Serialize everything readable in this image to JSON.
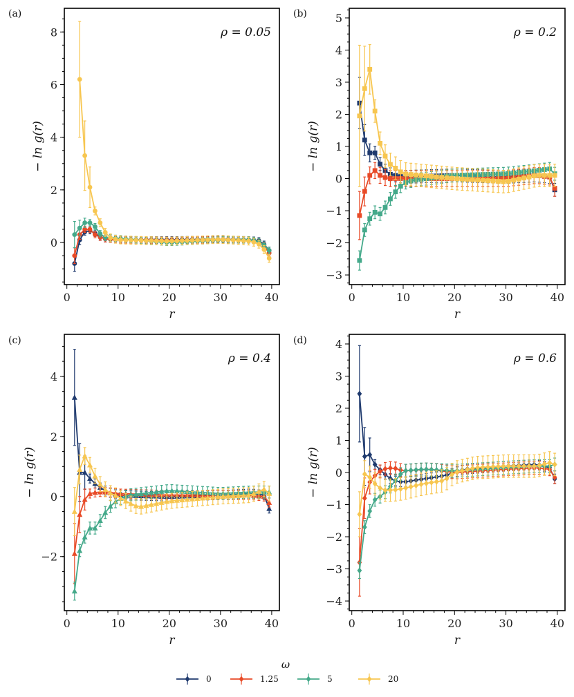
{
  "colors": {
    "s0": "#1f3a6e",
    "s1": "#e84a27",
    "s2": "#44a98a",
    "s3": "#f7c650"
  },
  "legend": {
    "title": "ω",
    "items": [
      {
        "label": "0",
        "color": "#1f3a6e",
        "marker": "diamond"
      },
      {
        "label": "1.25",
        "color": "#e84a27",
        "marker": "diamond"
      },
      {
        "label": "5",
        "color": "#44a98a",
        "marker": "diamond"
      },
      {
        "label": "20",
        "color": "#f7c650",
        "marker": "diamond"
      }
    ]
  },
  "chart_data": [
    {
      "type": "line",
      "panel_label": "(a)",
      "rho_label": "ρ = 0.05",
      "marker": "circle",
      "xlabel": "r",
      "ylabel": "− ln g(r)",
      "xlim": [
        -0.5,
        41.5
      ],
      "ylim": [
        -1.6,
        8.9
      ],
      "xticks": [
        "0",
        "10",
        "20",
        "30",
        "40"
      ],
      "yticks": [
        "0",
        "2",
        "4",
        "6",
        "8"
      ],
      "series": [
        {
          "name": "0",
          "anchors": [
            [
              1.5,
              -0.8
            ],
            [
              2.5,
              0.1
            ],
            [
              3.5,
              0.4
            ],
            [
              4.5,
              0.45
            ],
            [
              5.5,
              0.35
            ],
            [
              7,
              0.15
            ],
            [
              10,
              0.1
            ],
            [
              20,
              0.1
            ],
            [
              30,
              0.12
            ],
            [
              36,
              0.1
            ],
            [
              38,
              0.05
            ],
            [
              39.5,
              -0.3
            ]
          ],
          "err": 0.12,
          "err_first": 0.3
        },
        {
          "name": "1.25",
          "anchors": [
            [
              1.5,
              -0.5
            ],
            [
              2.5,
              0.3
            ],
            [
              3.5,
              0.5
            ],
            [
              4.5,
              0.5
            ],
            [
              5.5,
              0.3
            ],
            [
              7,
              0.15
            ],
            [
              10,
              0.1
            ],
            [
              20,
              0.08
            ],
            [
              30,
              0.1
            ],
            [
              36,
              0.1
            ],
            [
              38,
              0.0
            ],
            [
              39.5,
              -0.4
            ]
          ],
          "err": 0.12,
          "err_first": 0.3
        },
        {
          "name": "5",
          "anchors": [
            [
              1.5,
              0.3
            ],
            [
              2.5,
              0.55
            ],
            [
              3.5,
              0.75
            ],
            [
              4.5,
              0.75
            ],
            [
              5.5,
              0.6
            ],
            [
              7,
              0.2
            ],
            [
              10,
              0.15
            ],
            [
              20,
              0.0
            ],
            [
              30,
              0.1
            ],
            [
              36,
              0.1
            ],
            [
              38,
              0.0
            ],
            [
              39.5,
              -0.3
            ]
          ],
          "err": 0.12,
          "err_first": 0.5
        },
        {
          "name": "20",
          "anchors": [
            [
              2.5,
              6.2
            ],
            [
              3.5,
              3.3
            ],
            [
              4.5,
              2.1
            ],
            [
              5.5,
              1.2
            ],
            [
              6.5,
              0.75
            ],
            [
              8,
              0.2
            ],
            [
              10,
              0.1
            ],
            [
              20,
              0.05
            ],
            [
              30,
              0.12
            ],
            [
              36,
              0.05
            ],
            [
              38,
              -0.1
            ],
            [
              39.5,
              -0.6
            ]
          ],
          "err": 0.15,
          "err_first": 2.2
        }
      ]
    },
    {
      "type": "line",
      "panel_label": "(b)",
      "rho_label": "ρ = 0.2",
      "marker": "square",
      "xlabel": "r",
      "ylabel": "− ln g(r)",
      "xlim": [
        -0.5,
        41.5
      ],
      "ylim": [
        -3.3,
        5.3
      ],
      "xticks": [
        "0",
        "10",
        "20",
        "30",
        "40"
      ],
      "yticks": [
        "−3",
        "−2",
        "−1",
        "0",
        "1",
        "2",
        "3",
        "4",
        "5"
      ],
      "series": [
        {
          "name": "0",
          "anchors": [
            [
              1.5,
              2.35
            ],
            [
              2.5,
              1.2
            ],
            [
              3.5,
              0.8
            ],
            [
              4.5,
              0.8
            ],
            [
              5.5,
              0.45
            ],
            [
              7,
              0.15
            ],
            [
              10,
              0.05
            ],
            [
              20,
              0.1
            ],
            [
              30,
              0.05
            ],
            [
              36,
              0.1
            ],
            [
              38.5,
              0.05
            ],
            [
              39.5,
              -0.35
            ]
          ],
          "err": 0.2,
          "err_first": 0.8
        },
        {
          "name": "1.25",
          "anchors": [
            [
              1.5,
              -1.15
            ],
            [
              2.5,
              -0.4
            ],
            [
              3.5,
              0.1
            ],
            [
              4.5,
              0.25
            ],
            [
              5.5,
              0.1
            ],
            [
              7,
              0.0
            ],
            [
              10,
              0.0
            ],
            [
              20,
              0.0
            ],
            [
              30,
              0.0
            ],
            [
              36,
              0.1
            ],
            [
              38.5,
              0.05
            ],
            [
              39.5,
              -0.3
            ]
          ],
          "err": 0.25,
          "err_first": 0.75
        },
        {
          "name": "5",
          "anchors": [
            [
              1.5,
              -2.55
            ],
            [
              2.5,
              -1.6
            ],
            [
              3.5,
              -1.25
            ],
            [
              4.5,
              -1.05
            ],
            [
              5.5,
              -1.1
            ],
            [
              6.5,
              -0.9
            ],
            [
              8,
              -0.5
            ],
            [
              10,
              -0.15
            ],
            [
              12,
              -0.05
            ],
            [
              20,
              0.1
            ],
            [
              30,
              0.15
            ],
            [
              36,
              0.25
            ],
            [
              38.5,
              0.3
            ],
            [
              39.5,
              0.15
            ]
          ],
          "err": 0.2,
          "err_first": 0.3
        },
        {
          "name": "20",
          "anchors": [
            [
              1.5,
              1.95
            ],
            [
              2.5,
              2.8
            ],
            [
              3.5,
              3.4
            ],
            [
              4.5,
              2.1
            ],
            [
              5.5,
              1.1
            ],
            [
              7,
              0.5
            ],
            [
              10,
              0.15
            ],
            [
              20,
              0.0
            ],
            [
              30,
              -0.1
            ],
            [
              36,
              0.1
            ],
            [
              38.5,
              0.1
            ],
            [
              39.5,
              0.1
            ]
          ],
          "err": 0.35,
          "err_first": 2.2
        }
      ]
    },
    {
      "type": "line",
      "panel_label": "(c)",
      "rho_label": "ρ = 0.4",
      "marker": "triangle",
      "xlabel": "r",
      "ylabel": "− ln g(r)",
      "xlim": [
        -0.5,
        41.5
      ],
      "ylim": [
        -3.8,
        5.4
      ],
      "xticks": [
        "0",
        "10",
        "20",
        "30",
        "40"
      ],
      "yticks": [
        "−2",
        "0",
        "2",
        "4"
      ],
      "series": [
        {
          "name": "0",
          "anchors": [
            [
              1.5,
              3.3
            ],
            [
              2.5,
              0.8
            ],
            [
              3.5,
              0.8
            ],
            [
              4.5,
              0.6
            ],
            [
              6,
              0.35
            ],
            [
              8,
              0.15
            ],
            [
              10,
              0.05
            ],
            [
              20,
              0.0
            ],
            [
              30,
              0.05
            ],
            [
              36,
              0.1
            ],
            [
              38.5,
              0.05
            ],
            [
              39.5,
              -0.4
            ]
          ],
          "err": 0.15,
          "err_first": 1.6
        },
        {
          "name": "1.25",
          "anchors": [
            [
              1.5,
              -1.9
            ],
            [
              2.5,
              -0.6
            ],
            [
              3.5,
              -0.1
            ],
            [
              4.5,
              0.1
            ],
            [
              6,
              0.15
            ],
            [
              8,
              0.15
            ],
            [
              10,
              0.1
            ],
            [
              20,
              0.05
            ],
            [
              30,
              0.05
            ],
            [
              36,
              0.05
            ],
            [
              38.5,
              0.0
            ],
            [
              39.5,
              -0.2
            ]
          ],
          "err": 0.15,
          "err_first": 1.0
        },
        {
          "name": "5",
          "anchors": [
            [
              1.5,
              -3.15
            ],
            [
              2.5,
              -1.8
            ],
            [
              3.5,
              -1.35
            ],
            [
              4.5,
              -1.05
            ],
            [
              5.5,
              -1.05
            ],
            [
              6.5,
              -0.8
            ],
            [
              8,
              -0.4
            ],
            [
              10,
              -0.1
            ],
            [
              12,
              0.05
            ],
            [
              20,
              0.2
            ],
            [
              30,
              0.1
            ],
            [
              36,
              0.15
            ],
            [
              38.5,
              0.15
            ],
            [
              39.5,
              0.15
            ]
          ],
          "err": 0.2,
          "err_first": 0.3
        },
        {
          "name": "20",
          "anchors": [
            [
              1.5,
              -0.5
            ],
            [
              2.5,
              0.9
            ],
            [
              3.5,
              1.35
            ],
            [
              4.5,
              1.05
            ],
            [
              6,
              0.5
            ],
            [
              8,
              0.15
            ],
            [
              10,
              0.0
            ],
            [
              12,
              -0.2
            ],
            [
              14,
              -0.35
            ],
            [
              20,
              -0.15
            ],
            [
              30,
              0.0
            ],
            [
              36,
              0.05
            ],
            [
              38.5,
              0.25
            ],
            [
              39.5,
              0.1
            ]
          ],
          "err": 0.25,
          "err_first": 0.8
        }
      ]
    },
    {
      "type": "line",
      "panel_label": "(d)",
      "rho_label": "ρ = 0.6",
      "marker": "diamond",
      "xlabel": "r",
      "ylabel": "− ln g(r)",
      "xlim": [
        -0.5,
        41.5
      ],
      "ylim": [
        -4.3,
        4.3
      ],
      "xticks": [
        "0",
        "10",
        "20",
        "30",
        "40"
      ],
      "yticks": [
        "−4",
        "−3",
        "−2",
        "−1",
        "0",
        "1",
        "2",
        "3",
        "4"
      ],
      "series": [
        {
          "name": "0",
          "anchors": [
            [
              1.5,
              2.45
            ],
            [
              2.5,
              0.5
            ],
            [
              3.5,
              0.55
            ],
            [
              4.5,
              0.25
            ],
            [
              6,
              0.0
            ],
            [
              8,
              -0.25
            ],
            [
              10,
              -0.3
            ],
            [
              14,
              -0.2
            ],
            [
              18,
              -0.1
            ],
            [
              20,
              0.0
            ],
            [
              22,
              0.1
            ],
            [
              30,
              0.2
            ],
            [
              36,
              0.25
            ],
            [
              38.5,
              0.15
            ],
            [
              39.5,
              -0.2
            ]
          ],
          "err": 0.15,
          "err_first": 1.5
        },
        {
          "name": "1.25",
          "anchors": [
            [
              1.5,
              -2.8
            ],
            [
              2.5,
              -0.8
            ],
            [
              3.5,
              -0.3
            ],
            [
              4.5,
              -0.1
            ],
            [
              6,
              0.1
            ],
            [
              8,
              0.15
            ],
            [
              10,
              0.05
            ],
            [
              15,
              0.1
            ],
            [
              20,
              0.0
            ],
            [
              30,
              0.1
            ],
            [
              36,
              0.15
            ],
            [
              38.5,
              0.1
            ],
            [
              39.5,
              -0.15
            ]
          ],
          "err": 0.2,
          "err_first": 1.05
        },
        {
          "name": "5",
          "anchors": [
            [
              1.5,
              -3.05
            ],
            [
              2.5,
              -1.7
            ],
            [
              3.5,
              -1.2
            ],
            [
              4.5,
              -0.85
            ],
            [
              6,
              -0.7
            ],
            [
              8,
              -0.35
            ],
            [
              10,
              0.05
            ],
            [
              14,
              0.1
            ],
            [
              20,
              0.05
            ],
            [
              30,
              0.15
            ],
            [
              36,
              0.2
            ],
            [
              38.5,
              0.2
            ],
            [
              39.5,
              0.25
            ]
          ],
          "err": 0.2,
          "err_first": 0.25
        },
        {
          "name": "20",
          "anchors": [
            [
              1.5,
              -1.3
            ],
            [
              2.5,
              -0.05
            ],
            [
              3.5,
              -0.15
            ],
            [
              4.5,
              -0.35
            ],
            [
              6,
              -0.55
            ],
            [
              8,
              -0.55
            ],
            [
              10,
              -0.5
            ],
            [
              14,
              -0.35
            ],
            [
              18,
              -0.25
            ],
            [
              20,
              0.0
            ],
            [
              24,
              0.15
            ],
            [
              30,
              0.2
            ],
            [
              36,
              0.2
            ],
            [
              38.5,
              0.3
            ],
            [
              39.5,
              0.25
            ]
          ],
          "err": 0.35,
          "err_first": 0.7
        }
      ]
    }
  ]
}
